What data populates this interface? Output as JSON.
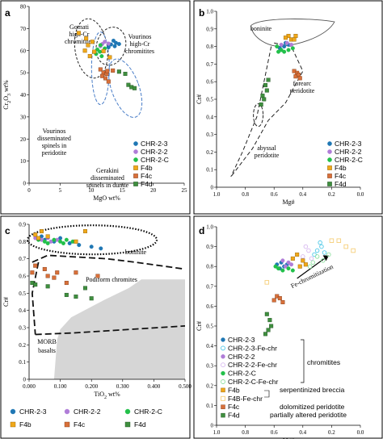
{
  "colors": {
    "chr23": "#1f77b4",
    "chr22": "#b07dd8",
    "chrC": "#22c04a",
    "f4b": "#f0a81a",
    "f4c": "#d8703a",
    "f4d": "#3f8f3f",
    "chr23fe": "#4ec8e8",
    "chr22fe": "#d7b8f0",
    "chrCfe": "#8fe0a0",
    "f4bfe": "#f6cf7a",
    "morb_fill": "#d6d6d6"
  },
  "chart_data": [
    {
      "type": "scatter",
      "panel": "a",
      "xlabel": "MgO wt%",
      "ylabel": "Cr2O3 wt%",
      "xlim": [
        0,
        25
      ],
      "ylim": [
        0,
        80
      ],
      "xticks": [
        0,
        5,
        10,
        15,
        20,
        25
      ],
      "yticks": [
        0,
        10,
        20,
        30,
        40,
        50,
        60,
        70,
        80
      ],
      "annotations": [
        {
          "lines": [
            "Gomati",
            "high-Cr",
            "chromitites"
          ]
        },
        {
          "lines": [
            "Vourinos",
            "high-Cr",
            "chromitites"
          ]
        },
        {
          "lines": [
            "Vourinos",
            "disseminated",
            "spinels in",
            "peridotite"
          ]
        },
        {
          "lines": [
            "Gerakini",
            "disseminated",
            "spinels in dunite"
          ]
        }
      ],
      "legend": [
        "CHR-2-3",
        "CHR-2-2",
        "CHR-2-C",
        "F4b",
        "F4c",
        "F4d"
      ],
      "series": [
        {
          "name": "CHR-2-3",
          "points": [
            [
              13.6,
              64.5
            ],
            [
              14.0,
              63.5
            ],
            [
              13.2,
              62.8
            ],
            [
              14.5,
              63.0
            ],
            [
              12.8,
              61.5
            ],
            [
              13.8,
              62.0
            ]
          ]
        },
        {
          "name": "CHR-2-2",
          "points": [
            [
              11.8,
              63.0
            ],
            [
              12.2,
              64.0
            ],
            [
              12.8,
              63.2
            ],
            [
              11.5,
              62.0
            ]
          ]
        },
        {
          "name": "CHR-2-C",
          "points": [
            [
              11.5,
              62.5
            ],
            [
              11.0,
              60.5
            ],
            [
              11.4,
              59.5
            ],
            [
              10.8,
              58.5
            ],
            [
              11.7,
              57.5
            ],
            [
              12.2,
              61.0
            ]
          ]
        },
        {
          "name": "F4b",
          "points": [
            [
              8.0,
              68.0
            ],
            [
              9.5,
              62.5
            ],
            [
              10.2,
              64.0
            ],
            [
              9.0,
              60.0
            ],
            [
              10.5,
              59.5
            ],
            [
              9.8,
              57.5
            ],
            [
              9.2,
              65.5
            ],
            [
              13.0,
              57.0
            ],
            [
              12.0,
              59.8
            ]
          ]
        },
        {
          "name": "F4c",
          "points": [
            [
              11.5,
              51.5
            ],
            [
              12.0,
              50.0
            ],
            [
              11.8,
              48.5
            ],
            [
              12.5,
              49.5
            ],
            [
              12.3,
              47.5
            ],
            [
              12.8,
              46.0
            ],
            [
              13.5,
              51.0
            ],
            [
              12.6,
              50.8
            ]
          ]
        },
        {
          "name": "F4d",
          "points": [
            [
              14.5,
              50.5
            ],
            [
              15.5,
              49.5
            ],
            [
              16.0,
              44.5
            ],
            [
              16.5,
              43.5
            ],
            [
              17.0,
              43.0
            ]
          ]
        }
      ]
    },
    {
      "type": "scatter",
      "panel": "b",
      "xlabel": "Mg#",
      "ylabel": "Cr#",
      "xlim": [
        1.0,
        0.0
      ],
      "ylim": [
        0,
        1.0
      ],
      "xticks": [
        1.0,
        0.8,
        0.6,
        0.4,
        0.2,
        0.0
      ],
      "yticks": [
        0,
        0.1,
        0.2,
        0.3,
        0.4,
        0.5,
        0.6,
        0.7,
        0.8,
        0.9,
        1.0
      ],
      "annotations": [
        {
          "lines": [
            "boninite"
          ]
        },
        {
          "lines": [
            "forearc",
            "peridotite"
          ]
        },
        {
          "lines": [
            "abyssal",
            "peridotite"
          ]
        }
      ],
      "legend": [
        "CHR-2-3",
        "CHR-2-2",
        "CHR-2-C",
        "F4b",
        "F4c",
        "F4d"
      ],
      "series": [
        {
          "name": "CHR-2-3",
          "points": [
            [
              0.53,
              0.8
            ],
            [
              0.5,
              0.81
            ],
            [
              0.56,
              0.79
            ],
            [
              0.52,
              0.82
            ]
          ]
        },
        {
          "name": "CHR-2-2",
          "points": [
            [
              0.55,
              0.81
            ],
            [
              0.51,
              0.82
            ],
            [
              0.48,
              0.81
            ]
          ]
        },
        {
          "name": "CHR-2-C",
          "points": [
            [
              0.58,
              0.8
            ],
            [
              0.55,
              0.78
            ],
            [
              0.53,
              0.77
            ],
            [
              0.5,
              0.78
            ],
            [
              0.47,
              0.79
            ],
            [
              0.57,
              0.77
            ]
          ]
        },
        {
          "name": "F4b",
          "points": [
            [
              0.5,
              0.86
            ],
            [
              0.48,
              0.84
            ],
            [
              0.46,
              0.84
            ],
            [
              0.52,
              0.85
            ],
            [
              0.45,
              0.86
            ]
          ]
        },
        {
          "name": "F4c",
          "points": [
            [
              0.46,
              0.66
            ],
            [
              0.44,
              0.65
            ],
            [
              0.45,
              0.63
            ],
            [
              0.43,
              0.64
            ],
            [
              0.42,
              0.62
            ]
          ]
        },
        {
          "name": "F4d",
          "points": [
            [
              0.64,
              0.61
            ],
            [
              0.66,
              0.58
            ],
            [
              0.65,
              0.55
            ],
            [
              0.68,
              0.52
            ],
            [
              0.67,
              0.5
            ],
            [
              0.69,
              0.47
            ]
          ]
        }
      ]
    },
    {
      "type": "scatter",
      "panel": "c",
      "xlabel": "TiO2 wt%",
      "ylabel": "Cr#",
      "xlim": [
        0,
        0.5
      ],
      "ylim": [
        0,
        0.9
      ],
      "xticks": [
        0,
        0.1,
        0.2,
        0.3,
        0.4,
        0.5
      ],
      "xtick_labels": [
        "0.000",
        "0.100",
        "0.200",
        "0.300",
        "0.400",
        "0.500"
      ],
      "yticks": [
        0,
        0.1,
        0.2,
        0.3,
        0.4,
        0.5,
        0.6,
        0.7,
        0.8,
        0.9
      ],
      "annotations": [
        {
          "lines": [
            "boninite"
          ]
        },
        {
          "lines": [
            "Podiform chromites"
          ]
        },
        {
          "lines": [
            "MORB",
            "basalts"
          ]
        }
      ],
      "legend": [
        "CHR-2-3",
        "CHR-2-2",
        "CHR-2-C",
        "F4b",
        "F4c",
        "F4d"
      ],
      "series": [
        {
          "name": "CHR-2-3",
          "points": [
            [
              0.05,
              0.81
            ],
            [
              0.08,
              0.8
            ],
            [
              0.1,
              0.82
            ],
            [
              0.13,
              0.79
            ],
            [
              0.16,
              0.78
            ],
            [
              0.2,
              0.77
            ],
            [
              0.23,
              0.76
            ],
            [
              0.04,
              0.83
            ]
          ]
        },
        {
          "name": "CHR-2-2",
          "points": [
            [
              0.02,
              0.82
            ],
            [
              0.04,
              0.81
            ],
            [
              0.06,
              0.82
            ],
            [
              0.07,
              0.8
            ],
            [
              0.09,
              0.81
            ]
          ]
        },
        {
          "name": "CHR-2-C",
          "points": [
            [
              0.03,
              0.81
            ],
            [
              0.05,
              0.8
            ],
            [
              0.06,
              0.79
            ],
            [
              0.08,
              0.81
            ],
            [
              0.1,
              0.8
            ],
            [
              0.11,
              0.79
            ],
            [
              0.12,
              0.81
            ],
            [
              0.14,
              0.8
            ]
          ]
        },
        {
          "name": "F4b",
          "points": [
            [
              0.02,
              0.84
            ],
            [
              0.03,
              0.82
            ],
            [
              0.04,
              0.86
            ],
            [
              0.06,
              0.83
            ],
            [
              0.15,
              0.8
            ],
            [
              0.18,
              0.86
            ]
          ]
        },
        {
          "name": "F4c",
          "points": [
            [
              0.01,
              0.62
            ],
            [
              0.02,
              0.66
            ],
            [
              0.05,
              0.64
            ],
            [
              0.06,
              0.6
            ],
            [
              0.08,
              0.59
            ],
            [
              0.09,
              0.62
            ],
            [
              0.12,
              0.56
            ],
            [
              0.15,
              0.62
            ],
            [
              0.22,
              0.6
            ]
          ]
        },
        {
          "name": "F4d",
          "points": [
            [
              0.01,
              0.56
            ],
            [
              0.02,
              0.55
            ],
            [
              0.06,
              0.54
            ],
            [
              0.12,
              0.49
            ],
            [
              0.15,
              0.48
            ],
            [
              0.18,
              0.53
            ],
            [
              0.2,
              0.47
            ]
          ]
        }
      ]
    },
    {
      "type": "scatter",
      "panel": "d",
      "xlabel": "Mg#",
      "ylabel": "Cr#",
      "xlim": [
        1.0,
        0.0
      ],
      "ylim": [
        0,
        1.0
      ],
      "xticks": [
        1.0,
        0.8,
        0.6,
        0.4,
        0.2,
        0.0
      ],
      "yticks": [
        0,
        0.1,
        0.2,
        0.3,
        0.4,
        0.5,
        0.6,
        0.7,
        0.8,
        0.9,
        1.0
      ],
      "annotations": [
        {
          "lines": [
            "Fe-chromitization"
          ]
        }
      ],
      "legend": [
        "CHR-2-3",
        "CHR-2-3-Fe-chr",
        "CHR-2-2",
        "CHR-2-2-Fe-chr",
        "CHR-2-C",
        "CHR-2-C-Fe-chr",
        "F4b",
        "F4B-Fe-chr",
        "F4c",
        "F4d"
      ],
      "legend_groups": [
        {
          "label": "chromitites"
        },
        {
          "label": "serpentinized breccia"
        },
        {
          "label": "dolomitized peridotite"
        },
        {
          "label": "partially altered peridotite"
        }
      ],
      "series": [
        {
          "name": "CHR-2-3",
          "points": [
            [
              0.58,
              0.81
            ],
            [
              0.55,
              0.82
            ],
            [
              0.53,
              0.8
            ],
            [
              0.51,
              0.81
            ],
            [
              0.56,
              0.79
            ]
          ]
        },
        {
          "name": "CHR-2-3-Fe-chr",
          "points": [
            [
              0.3,
              0.88
            ],
            [
              0.27,
              0.9
            ],
            [
              0.25,
              0.87
            ],
            [
              0.32,
              0.86
            ],
            [
              0.28,
              0.92
            ]
          ]
        },
        {
          "name": "CHR-2-2",
          "points": [
            [
              0.54,
              0.83
            ],
            [
              0.5,
              0.82
            ],
            [
              0.48,
              0.81
            ],
            [
              0.52,
              0.8
            ]
          ]
        },
        {
          "name": "CHR-2-2-Fe-chr",
          "points": [
            [
              0.4,
              0.85
            ],
            [
              0.36,
              0.88
            ],
            [
              0.34,
              0.84
            ],
            [
              0.38,
              0.9
            ]
          ]
        },
        {
          "name": "CHR-2-C",
          "points": [
            [
              0.57,
              0.79
            ],
            [
              0.54,
              0.78
            ],
            [
              0.5,
              0.79
            ],
            [
              0.47,
              0.78
            ],
            [
              0.59,
              0.8
            ]
          ]
        },
        {
          "name": "CHR-2-C-Fe-chr",
          "points": [
            [
              0.33,
              0.82
            ],
            [
              0.3,
              0.85
            ],
            [
              0.26,
              0.83
            ],
            [
              0.22,
              0.86
            ],
            [
              0.35,
              0.8
            ]
          ]
        },
        {
          "name": "F4b",
          "points": [
            [
              0.47,
              0.84
            ],
            [
              0.44,
              0.86
            ],
            [
              0.42,
              0.8
            ],
            [
              0.4,
              0.83
            ],
            [
              0.38,
              0.81
            ]
          ]
        },
        {
          "name": "F4B-Fe-chr",
          "points": [
            [
              0.65,
              0.72
            ],
            [
              0.2,
              0.93
            ],
            [
              0.15,
              0.93
            ],
            [
              0.1,
              0.9
            ],
            [
              0.05,
              0.88
            ]
          ]
        },
        {
          "name": "F4c",
          "points": [
            [
              0.6,
              0.63
            ],
            [
              0.58,
              0.65
            ],
            [
              0.56,
              0.64
            ],
            [
              0.54,
              0.62
            ]
          ]
        },
        {
          "name": "F4d",
          "points": [
            [
              0.65,
              0.56
            ],
            [
              0.63,
              0.53
            ],
            [
              0.62,
              0.5
            ],
            [
              0.66,
              0.46
            ],
            [
              0.64,
              0.48
            ]
          ]
        }
      ]
    }
  ]
}
